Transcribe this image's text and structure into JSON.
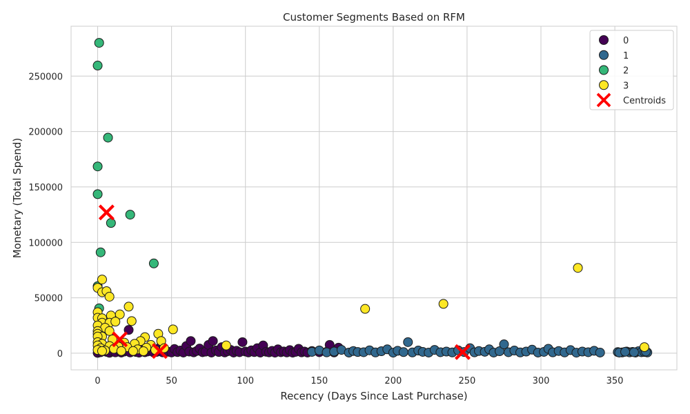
{
  "chart_data": {
    "type": "scatter",
    "title": "Customer Segments Based on RFM",
    "xlabel": "Recency (Days Since Last Purchase)",
    "ylabel": "Monetary (Total Spend)",
    "xlim": [
      -18,
      392
    ],
    "ylim": [
      -15000,
      295000
    ],
    "xticks": [
      0,
      50,
      100,
      150,
      200,
      250,
      300,
      350
    ],
    "yticks": [
      0,
      50000,
      100000,
      150000,
      200000,
      250000
    ],
    "grid": true,
    "legend_position": "top-right",
    "series": [
      {
        "name": "0",
        "color": "#440154",
        "points": [
          [
            0,
            300
          ],
          [
            2,
            900
          ],
          [
            4,
            2500
          ],
          [
            6,
            1200
          ],
          [
            8,
            400
          ],
          [
            10,
            1800
          ],
          [
            12,
            800
          ],
          [
            14,
            3000
          ],
          [
            16,
            600
          ],
          [
            18,
            1500
          ],
          [
            20,
            2200
          ],
          [
            22,
            700
          ],
          [
            24,
            4000
          ],
          [
            26,
            1100
          ],
          [
            28,
            500
          ],
          [
            30,
            3500
          ],
          [
            32,
            900
          ],
          [
            34,
            1600
          ],
          [
            36,
            2800
          ],
          [
            38,
            600
          ],
          [
            40,
            1200
          ],
          [
            42,
            5000
          ],
          [
            44,
            800
          ],
          [
            46,
            2100
          ],
          [
            48,
            1300
          ],
          [
            50,
            700
          ],
          [
            52,
            3800
          ],
          [
            54,
            1000
          ],
          [
            56,
            2400
          ],
          [
            58,
            600
          ],
          [
            60,
            6500
          ],
          [
            62,
            1500
          ],
          [
            63,
            11000
          ],
          [
            65,
            800
          ],
          [
            67,
            2000
          ],
          [
            69,
            4200
          ],
          [
            71,
            900
          ],
          [
            73,
            1400
          ],
          [
            75,
            7500
          ],
          [
            77,
            600
          ],
          [
            78,
            11000
          ],
          [
            80,
            2500
          ],
          [
            82,
            1100
          ],
          [
            84,
            5500
          ],
          [
            86,
            700
          ],
          [
            88,
            1800
          ],
          [
            90,
            3000
          ],
          [
            92,
            600
          ],
          [
            94,
            2200
          ],
          [
            96,
            900
          ],
          [
            98,
            10000
          ],
          [
            100,
            1500
          ],
          [
            102,
            700
          ],
          [
            104,
            2600
          ],
          [
            106,
            1000
          ],
          [
            108,
            4500
          ],
          [
            110,
            600
          ],
          [
            112,
            7000
          ],
          [
            114,
            1300
          ],
          [
            116,
            800
          ],
          [
            118,
            2100
          ],
          [
            120,
            500
          ],
          [
            122,
            3500
          ],
          [
            124,
            900
          ],
          [
            126,
            1600
          ],
          [
            128,
            700
          ],
          [
            130,
            2800
          ],
          [
            132,
            500
          ],
          [
            134,
            1200
          ],
          [
            136,
            4000
          ],
          [
            138,
            800
          ],
          [
            140,
            1500
          ],
          [
            142,
            600
          ],
          [
            145,
            2000
          ],
          [
            150,
            900
          ],
          [
            155,
            1300
          ],
          [
            157,
            7500
          ],
          [
            160,
            700
          ],
          [
            163,
            5000
          ],
          [
            21,
            21000
          ]
        ]
      },
      {
        "name": "1",
        "color": "#31688e",
        "points": [
          [
            145,
            1200
          ],
          [
            150,
            2500
          ],
          [
            155,
            800
          ],
          [
            160,
            1500
          ],
          [
            165,
            3000
          ],
          [
            170,
            600
          ],
          [
            173,
            2000
          ],
          [
            176,
            1100
          ],
          [
            180,
            900
          ],
          [
            184,
            2600
          ],
          [
            188,
            700
          ],
          [
            192,
            1800
          ],
          [
            196,
            3500
          ],
          [
            200,
            500
          ],
          [
            203,
            2200
          ],
          [
            207,
            1000
          ],
          [
            210,
            10000
          ],
          [
            213,
            700
          ],
          [
            217,
            2400
          ],
          [
            220,
            1200
          ],
          [
            224,
            600
          ],
          [
            228,
            3000
          ],
          [
            232,
            900
          ],
          [
            236,
            1500
          ],
          [
            240,
            700
          ],
          [
            244,
            2600
          ],
          [
            248,
            1100
          ],
          [
            252,
            4500
          ],
          [
            255,
            800
          ],
          [
            258,
            2000
          ],
          [
            262,
            1300
          ],
          [
            265,
            3500
          ],
          [
            268,
            600
          ],
          [
            272,
            1800
          ],
          [
            275,
            8000
          ],
          [
            278,
            900
          ],
          [
            282,
            2400
          ],
          [
            286,
            700
          ],
          [
            290,
            1500
          ],
          [
            294,
            3200
          ],
          [
            298,
            600
          ],
          [
            302,
            1200
          ],
          [
            305,
            4000
          ],
          [
            308,
            800
          ],
          [
            312,
            2000
          ],
          [
            316,
            700
          ],
          [
            320,
            2800
          ],
          [
            324,
            500
          ],
          [
            328,
            1500
          ],
          [
            332,
            900
          ],
          [
            336,
            2200
          ],
          [
            340,
            600
          ],
          [
            352,
            1000
          ],
          [
            355,
            700
          ],
          [
            358,
            1500
          ],
          [
            360,
            800
          ],
          [
            362,
            1200
          ],
          [
            364,
            600
          ],
          [
            366,
            1800
          ],
          [
            368,
            900
          ],
          [
            370,
            1100
          ],
          [
            372,
            700
          ],
          [
            353,
            600
          ],
          [
            357,
            1300
          ],
          [
            363,
            900
          ],
          [
            371,
            1500
          ]
        ]
      },
      {
        "name": "2",
        "color": "#35b779",
        "points": [
          [
            1,
            280000
          ],
          [
            0,
            259500
          ],
          [
            7,
            194500
          ],
          [
            0,
            168500
          ],
          [
            0,
            143500
          ],
          [
            22,
            125000
          ],
          [
            9,
            117500
          ],
          [
            2,
            91000
          ],
          [
            38,
            81000
          ],
          [
            0,
            60500
          ],
          [
            1,
            40500
          ]
        ]
      },
      {
        "name": "3",
        "color": "#fde725",
        "points": [
          [
            3,
            66500
          ],
          [
            0,
            59000
          ],
          [
            3,
            55000
          ],
          [
            6,
            56000
          ],
          [
            8,
            51000
          ],
          [
            0,
            37000
          ],
          [
            21,
            42000
          ],
          [
            15,
            35000
          ],
          [
            9,
            34000
          ],
          [
            0,
            32000
          ],
          [
            3,
            31500
          ],
          [
            23,
            29000
          ],
          [
            3,
            27500
          ],
          [
            8,
            27500
          ],
          [
            12,
            28500
          ],
          [
            0,
            25000
          ],
          [
            5,
            23000
          ],
          [
            8,
            20000
          ],
          [
            0,
            20000
          ],
          [
            51,
            21500
          ],
          [
            0,
            17500
          ],
          [
            41,
            17500
          ],
          [
            3,
            15000
          ],
          [
            32,
            14500
          ],
          [
            0,
            15000
          ],
          [
            10,
            12500
          ],
          [
            29,
            11000
          ],
          [
            43,
            11000
          ],
          [
            0,
            10000
          ],
          [
            18,
            9500
          ],
          [
            3,
            8500
          ],
          [
            25,
            8500
          ],
          [
            36,
            7500
          ],
          [
            0,
            7000
          ],
          [
            8,
            6500
          ],
          [
            14,
            6000
          ],
          [
            20,
            5500
          ],
          [
            33,
            5000
          ],
          [
            2,
            4500
          ],
          [
            45,
            4500
          ],
          [
            11,
            4000
          ],
          [
            27,
            3500
          ],
          [
            0,
            3000
          ],
          [
            39,
            3000
          ],
          [
            5,
            2500
          ],
          [
            16,
            2000
          ],
          [
            24,
            2000
          ],
          [
            31,
            1800
          ],
          [
            3,
            2000
          ],
          [
            87,
            7000
          ],
          [
            181,
            40000
          ],
          [
            234,
            44500
          ],
          [
            325,
            77000
          ],
          [
            370,
            5500
          ]
        ]
      }
    ],
    "centroids": {
      "name": "Centroids",
      "color": "#ff0000",
      "points": [
        [
          6,
          127000
        ],
        [
          15,
          12500
        ],
        [
          42,
          2000
        ],
        [
          247,
          1000
        ]
      ]
    },
    "legend": [
      "0",
      "1",
      "2",
      "3",
      "Centroids"
    ]
  }
}
